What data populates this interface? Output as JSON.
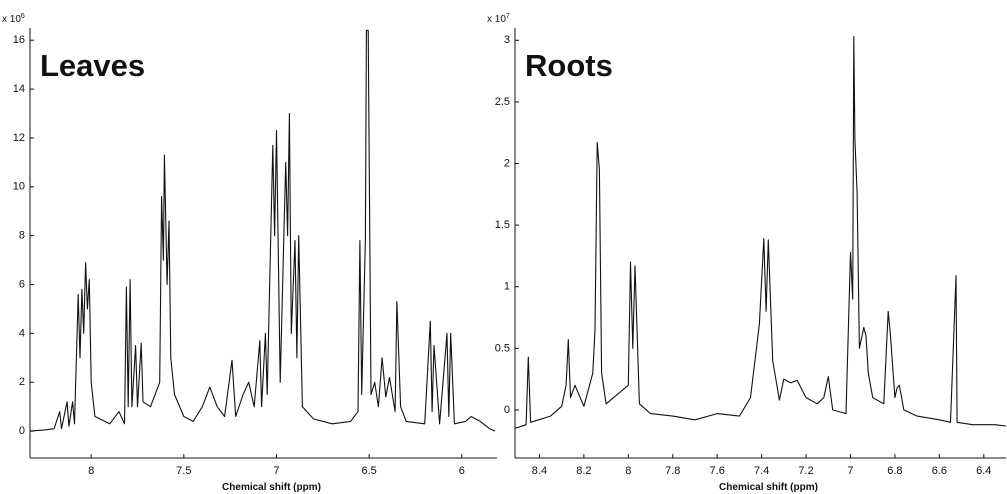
{
  "chart_data": [
    {
      "type": "line",
      "title": "Leaves",
      "x_label": "Chemical shift (ppm)",
      "y_exponent_label": {
        "base": "x 10",
        "power": "6"
      },
      "color": "#111111",
      "x": [
        8.33,
        8.25,
        8.2,
        8.17,
        8.16,
        8.13,
        8.12,
        8.1,
        8.09,
        8.07,
        8.06,
        8.05,
        8.04,
        8.03,
        8.02,
        8.01,
        8.0,
        7.98,
        7.9,
        7.85,
        7.82,
        7.81,
        7.8,
        7.79,
        7.78,
        7.76,
        7.75,
        7.73,
        7.72,
        7.68,
        7.63,
        7.62,
        7.61,
        7.605,
        7.59,
        7.58,
        7.57,
        7.55,
        7.5,
        7.45,
        7.4,
        7.36,
        7.32,
        7.28,
        7.24,
        7.22,
        7.18,
        7.15,
        7.12,
        7.09,
        7.08,
        7.06,
        7.05,
        7.02,
        7.01,
        7.0,
        6.98,
        6.95,
        6.94,
        6.93,
        6.92,
        6.9,
        6.89,
        6.88,
        6.86,
        6.8,
        6.7,
        6.6,
        6.56,
        6.55,
        6.54,
        6.52,
        6.515,
        6.505,
        6.49,
        6.47,
        6.45,
        6.43,
        6.41,
        6.39,
        6.36,
        6.35,
        6.33,
        6.3,
        6.2,
        6.17,
        6.16,
        6.15,
        6.12,
        6.08,
        6.07,
        6.06,
        6.04,
        5.98,
        5.95,
        5.9,
        5.85,
        5.82
      ],
      "values": [
        0.0,
        0.05,
        0.1,
        0.8,
        0.1,
        1.2,
        0.2,
        1.2,
        0.3,
        5.6,
        3,
        5.8,
        4,
        6.9,
        5,
        6.2,
        2,
        0.6,
        0.3,
        0.8,
        0.3,
        5.9,
        1,
        6.2,
        1,
        3.5,
        1,
        3.6,
        1.2,
        1.0,
        2,
        9.6,
        7,
        11.3,
        6,
        8.6,
        3,
        1.5,
        0.6,
        0.4,
        1.0,
        1.8,
        1.0,
        0.6,
        2.9,
        0.6,
        1.5,
        2.0,
        1,
        3.7,
        1,
        4.0,
        1.5,
        11.7,
        8,
        12.3,
        2,
        11,
        8,
        13,
        4,
        7.8,
        3,
        8.0,
        1,
        0.5,
        0.3,
        0.4,
        0.8,
        7.8,
        1.5,
        7.9,
        16.4,
        16.4,
        1.5,
        2.0,
        1.0,
        3.0,
        1.4,
        2.2,
        0.8,
        5.3,
        1,
        0.4,
        0.3,
        4.5,
        0.8,
        3.5,
        0.3,
        4.0,
        0.6,
        4.0,
        0.3,
        0.4,
        0.6,
        0.4,
        0.1,
        0.0
      ],
      "xlim": [
        8.33,
        5.81
      ],
      "xticks": [
        8,
        7.5,
        7,
        6.5,
        6
      ],
      "ylim": [
        -1.1,
        16.5
      ],
      "yticks": [
        0,
        2,
        4,
        6,
        8,
        10,
        12,
        14,
        16
      ]
    },
    {
      "type": "line",
      "title": "Roots",
      "x_label": "Chemical shift (ppm)",
      "y_exponent_label": {
        "base": "x 10",
        "power": "7"
      },
      "color": "#111111",
      "x": [
        8.51,
        8.46,
        8.45,
        8.44,
        8.35,
        8.3,
        8.28,
        8.27,
        8.26,
        8.24,
        8.2,
        8.16,
        8.15,
        8.14,
        8.13,
        8.12,
        8.1,
        8.0,
        7.99,
        7.98,
        7.97,
        7.95,
        7.9,
        7.8,
        7.7,
        7.6,
        7.5,
        7.45,
        7.41,
        7.39,
        7.38,
        7.37,
        7.35,
        7.32,
        7.3,
        7.27,
        7.24,
        7.2,
        7.15,
        7.12,
        7.1,
        7.08,
        7.02,
        7.0,
        6.99,
        6.985,
        6.98,
        6.97,
        6.96,
        6.94,
        6.93,
        6.92,
        6.9,
        6.85,
        6.83,
        6.82,
        6.8,
        6.79,
        6.78,
        6.76,
        6.7,
        6.6,
        6.55,
        6.525,
        6.52,
        6.45,
        6.35,
        6.3
      ],
      "values": [
        -0.15,
        -0.12,
        0.43,
        -0.1,
        -0.05,
        0.03,
        0.2,
        0.57,
        0.1,
        0.2,
        0.03,
        0.3,
        0.65,
        2.17,
        1.95,
        0.3,
        0.05,
        0.2,
        1.2,
        0.5,
        1.17,
        0.05,
        -0.03,
        -0.05,
        -0.08,
        -0.03,
        -0.05,
        0.1,
        0.7,
        1.39,
        0.8,
        1.38,
        0.4,
        0.08,
        0.25,
        0.22,
        0.24,
        0.1,
        0.05,
        0.1,
        0.27,
        0.0,
        -0.03,
        1.28,
        0.9,
        3.03,
        2.2,
        1.76,
        0.5,
        0.67,
        0.6,
        0.3,
        0.1,
        0.05,
        0.8,
        0.6,
        0.1,
        0.18,
        0.2,
        0.0,
        -0.05,
        -0.08,
        -0.1,
        1.09,
        -0.1,
        -0.12,
        -0.12,
        -0.13
      ],
      "xlim": [
        8.51,
        6.3
      ],
      "xticks": [
        8.4,
        8.2,
        8,
        7.8,
        7.6,
        7.4,
        7.2,
        7,
        6.8,
        6.6,
        6.4
      ],
      "ylim": [
        -0.39,
        3.1
      ],
      "yticks": [
        0,
        0.5,
        1,
        1.5,
        2,
        2.5,
        3
      ]
    }
  ]
}
